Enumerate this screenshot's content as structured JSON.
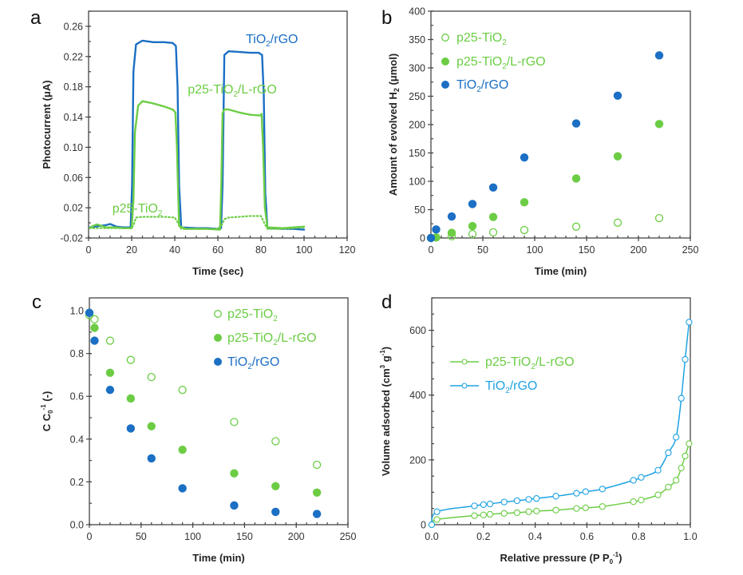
{
  "colors": {
    "blue": "#1b6fc4",
    "green": "#6ccd45",
    "cyan_blue": "#1fa3e3",
    "axis": "#444444"
  },
  "chart_data": [
    {
      "panel": "a",
      "type": "line",
      "title": "",
      "xlabel": "Time (sec)",
      "ylabel": "Photocurrent (μA)",
      "xlim": [
        0,
        120
      ],
      "ylim": [
        -0.02,
        0.28
      ],
      "xticks": [
        0,
        20,
        40,
        60,
        80,
        100,
        120
      ],
      "xtick_labels": [
        "0",
        "20",
        "40",
        "60",
        "80",
        "100",
        "120"
      ],
      "yticks": [
        -0.02,
        0.02,
        0.06,
        0.1,
        0.14,
        0.18,
        0.22,
        0.26
      ],
      "ytick_labels": [
        "-0.02",
        "0.02",
        "0.06",
        "0.10",
        "0.14",
        "0.18",
        "0.22",
        "0.26"
      ],
      "grid": false,
      "annotations": [
        {
          "text": "TiO",
          "sub": "2",
          "rest": "/rGO",
          "color_key": "blue",
          "anchor_x": 73,
          "anchor_y": 0.238
        },
        {
          "text": "p25-TiO",
          "sub": "2",
          "rest": "/L-rGO",
          "color_key": "green",
          "anchor_x": 46,
          "anchor_y": 0.171
        },
        {
          "text": "p25-TiO",
          "sub": "2",
          "rest": "",
          "color_key": "green",
          "anchor_x": 11,
          "anchor_y": 0.014
        }
      ],
      "series": [
        {
          "name": "TiO2/rGO",
          "color_key": "blue",
          "style": "solid",
          "x": [
            0.5,
            3,
            5,
            8,
            10,
            13,
            16,
            19.5,
            20.2,
            20.8,
            22,
            25,
            30,
            35,
            39,
            40.5,
            41.3,
            42,
            43,
            50,
            55,
            60,
            61.5,
            62.2,
            63,
            65,
            70,
            75,
            79,
            80.5,
            81.3,
            82,
            83,
            90,
            95,
            100
          ],
          "y": [
            -0.006,
            -0.005,
            -0.004,
            -0.003,
            -0.0015,
            -0.005,
            -0.006,
            -0.006,
            0.05,
            0.2,
            0.236,
            0.241,
            0.239,
            0.239,
            0.238,
            0.234,
            0.18,
            0.05,
            -0.006,
            -0.007,
            -0.007,
            -0.008,
            -0.007,
            0.05,
            0.222,
            0.227,
            0.226,
            0.225,
            0.225,
            0.222,
            0.17,
            0.04,
            -0.007,
            -0.008,
            -0.008,
            -0.009
          ]
        },
        {
          "name": "p25-TiO2/L-rGO",
          "color_key": "green",
          "style": "solid",
          "x": [
            0.5,
            2,
            4,
            6,
            8,
            12,
            16,
            20,
            20.8,
            21.5,
            23,
            25,
            30,
            35,
            39,
            39.7,
            40.3,
            41,
            42,
            45,
            55,
            61,
            61.6,
            62.2,
            63,
            65,
            70,
            75,
            79.5,
            80.3,
            81,
            81.8,
            83,
            90,
            100
          ],
          "y": [
            -0.007,
            -0.004,
            -0.002,
            -0.004,
            -0.006,
            -0.006,
            -0.007,
            -0.007,
            0.03,
            0.12,
            0.155,
            0.161,
            0.158,
            0.154,
            0.15,
            0.148,
            0.146,
            0.1,
            -0.004,
            -0.008,
            -0.008,
            -0.009,
            0.05,
            0.145,
            0.15,
            0.15,
            0.146,
            0.143,
            0.142,
            0.144,
            0.1,
            0.02,
            -0.006,
            -0.007,
            -0.005
          ]
        },
        {
          "name": "p25-TiO2",
          "color_key": "green",
          "style": "dotted",
          "x": [
            0.5,
            5,
            10,
            15,
            20,
            21,
            22,
            25,
            30,
            35,
            40,
            41.5,
            43,
            50,
            60,
            62,
            63,
            65,
            70,
            75,
            80,
            81.5,
            83,
            90,
            100
          ],
          "y": [
            -0.007,
            -0.007,
            -0.007,
            -0.007,
            -0.007,
            -0.002,
            0.007,
            0.008,
            0.008,
            0.008,
            0.007,
            0.0,
            -0.008,
            -0.008,
            -0.008,
            -0.002,
            0.005,
            0.007,
            0.008,
            0.009,
            0.009,
            0.0,
            -0.008,
            -0.008,
            -0.006
          ]
        }
      ]
    },
    {
      "panel": "b",
      "type": "scatter",
      "title": "",
      "xlabel": "Time (min)",
      "ylabel": "Amount of evolved H2 (μmol)",
      "ylabel_parts": {
        "pre": "Amount of evolved H",
        "sub": "2",
        "post": " (μmol)"
      },
      "xlim": [
        0,
        250
      ],
      "ylim": [
        0,
        400
      ],
      "xticks": [
        0,
        50,
        100,
        150,
        200,
        250
      ],
      "xtick_labels": [
        "0",
        "50",
        "100",
        "150",
        "200",
        "250"
      ],
      "yticks": [
        0,
        50,
        100,
        150,
        200,
        250,
        300,
        350,
        400
      ],
      "ytick_labels": [
        "0",
        "50",
        "100",
        "150",
        "200",
        "250",
        "300",
        "350",
        "400"
      ],
      "grid": false,
      "legend_position": "top-left",
      "legend": [
        {
          "text": "p25-TiO",
          "sub": "2",
          "rest": "",
          "marker": "open",
          "color_key": "green"
        },
        {
          "text": "p25-TiO",
          "sub": "2",
          "rest": "/L-rGO",
          "marker": "filled",
          "color_key": "green"
        },
        {
          "text": "TiO",
          "sub": "2",
          "rest": "/rGO",
          "marker": "filled",
          "color_key": "blue"
        }
      ],
      "series": [
        {
          "name": "p25-TiO2",
          "marker": "open",
          "color_key": "green",
          "x": [
            0,
            5,
            20,
            40,
            60,
            90,
            140,
            180,
            220
          ],
          "y": [
            0,
            1,
            3,
            7,
            10,
            14,
            20,
            27,
            35
          ]
        },
        {
          "name": "p25-TiO2/L-rGO",
          "marker": "filled",
          "color_key": "green",
          "x": [
            0,
            5,
            20,
            40,
            60,
            90,
            140,
            180,
            220
          ],
          "y": [
            0,
            1,
            9,
            21,
            37,
            63,
            105,
            144,
            201
          ]
        },
        {
          "name": "TiO2/rGO",
          "marker": "filled",
          "color_key": "blue",
          "x": [
            0,
            5,
            20,
            40,
            60,
            90,
            140,
            180,
            220
          ],
          "y": [
            0,
            15,
            38,
            60,
            89,
            142,
            202,
            251,
            322
          ]
        }
      ]
    },
    {
      "panel": "c",
      "type": "scatter",
      "title": "",
      "xlabel": "Time (min)",
      "ylabel": "C C0-1 (-)",
      "ylabel_parts": {
        "pre": "C C",
        "sub": "0",
        "sup": "-1",
        "post": " (-)"
      },
      "xlim": [
        0,
        250
      ],
      "ylim": [
        0,
        1.06
      ],
      "xticks": [
        0,
        50,
        100,
        150,
        200,
        250
      ],
      "xtick_labels": [
        "0",
        "50",
        "100",
        "150",
        "200",
        "250"
      ],
      "yticks": [
        0.0,
        0.2,
        0.4,
        0.6,
        0.8,
        1.0
      ],
      "ytick_labels": [
        "0.0",
        "0.2",
        "0.4",
        "0.6",
        "0.8",
        "1.0"
      ],
      "grid": false,
      "legend_position": "top-right",
      "legend": [
        {
          "text": "p25-TiO",
          "sub": "2",
          "rest": "",
          "marker": "open",
          "color_key": "green"
        },
        {
          "text": "p25-TiO",
          "sub": "2",
          "rest": "/L-rGO",
          "marker": "filled",
          "color_key": "green"
        },
        {
          "text": "TiO",
          "sub": "2",
          "rest": "/rGO",
          "marker": "filled",
          "color_key": "blue"
        }
      ],
      "series": [
        {
          "name": "p25-TiO2",
          "marker": "open",
          "color_key": "green",
          "x": [
            0,
            5,
            20,
            40,
            60,
            90,
            140,
            180,
            220
          ],
          "y": [
            0.98,
            0.96,
            0.86,
            0.77,
            0.69,
            0.63,
            0.48,
            0.39,
            0.28
          ]
        },
        {
          "name": "p25-TiO2/L-rGO",
          "marker": "filled",
          "color_key": "green",
          "x": [
            0,
            5,
            20,
            40,
            60,
            90,
            140,
            180,
            220
          ],
          "y": [
            0.99,
            0.92,
            0.71,
            0.59,
            0.46,
            0.35,
            0.24,
            0.18,
            0.15
          ]
        },
        {
          "name": "TiO2/rGO",
          "marker": "filled",
          "color_key": "blue",
          "x": [
            0,
            5,
            20,
            40,
            60,
            90,
            140,
            180,
            220
          ],
          "y": [
            0.99,
            0.86,
            0.63,
            0.45,
            0.31,
            0.17,
            0.09,
            0.06,
            0.05
          ]
        }
      ]
    },
    {
      "panel": "d",
      "type": "line",
      "title": "",
      "xlabel": "Relative pressure (P P0-1)",
      "xlabel_parts": {
        "pre": "Relative pressure (P P",
        "sub": "0",
        "sup": "-1",
        "post": ")"
      },
      "ylabel": "Volume adsorbed (cm3 g-1)",
      "ylabel_parts": {
        "pre": "Volume adsorbed (cm",
        "sup1": "3",
        "mid": " g",
        "sup2": "-1",
        "post": ")"
      },
      "xlim": [
        0,
        1.0
      ],
      "ylim": [
        0,
        700
      ],
      "xticks": [
        0.0,
        0.2,
        0.4,
        0.6,
        0.8,
        1.0
      ],
      "xtick_labels": [
        "0.0",
        "0.2",
        "0.4",
        "0.6",
        "0.8",
        "1.0"
      ],
      "yticks": [
        0,
        200,
        400,
        600
      ],
      "ytick_labels": [
        "0",
        "200",
        "400",
        "600"
      ],
      "grid": false,
      "legend_position": "middle-left",
      "legend": [
        {
          "text": "p25-TiO",
          "sub": "2",
          "rest": "/L-rGO",
          "marker": "line-open",
          "color_key": "green"
        },
        {
          "text": "TiO",
          "sub": "2",
          "rest": "/rGO",
          "marker": "line-open",
          "color_key": "cyan_blue"
        }
      ],
      "series": [
        {
          "name": "p25-TiO2/L-rGO",
          "color_key": "green",
          "marker": "open",
          "x": [
            0,
            0.02,
            0.165,
            0.2,
            0.225,
            0.28,
            0.33,
            0.375,
            0.405,
            0.48,
            0.56,
            0.595,
            0.66,
            0.78,
            0.81,
            0.875,
            0.915,
            0.945,
            0.965,
            0.98,
            0.995
          ],
          "y": [
            0,
            16,
            28,
            30,
            32,
            35,
            37,
            40,
            42,
            45,
            50,
            52,
            56,
            71,
            76,
            92,
            116,
            137,
            175,
            212,
            250
          ]
        },
        {
          "name": "TiO2/rGO",
          "color_key": "cyan_blue",
          "marker": "open",
          "x": [
            0,
            0.02,
            0.165,
            0.2,
            0.225,
            0.28,
            0.33,
            0.375,
            0.405,
            0.48,
            0.56,
            0.595,
            0.66,
            0.78,
            0.81,
            0.875,
            0.915,
            0.945,
            0.965,
            0.98,
            0.995
          ],
          "y": [
            0,
            40,
            58,
            62,
            64,
            70,
            74,
            78,
            81,
            88,
            97,
            102,
            110,
            137,
            146,
            168,
            222,
            270,
            390,
            510,
            625
          ]
        }
      ]
    }
  ]
}
